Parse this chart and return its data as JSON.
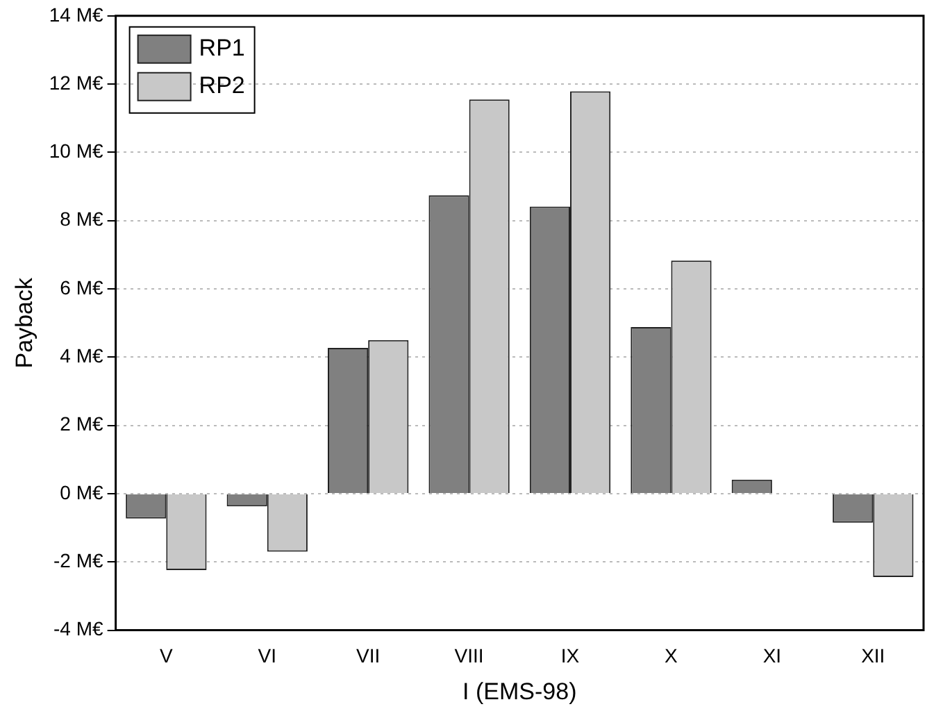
{
  "chart_data": {
    "type": "bar",
    "xlabel": "I (EMS-98)",
    "ylabel": "Payback",
    "categories": [
      "V",
      "VI",
      "VII",
      "VIII",
      "IX",
      "X",
      "XI",
      "XII"
    ],
    "series": [
      {
        "name": "RP1",
        "color": "#808080",
        "values": [
          -0.73,
          -0.37,
          4.27,
          8.74,
          8.41,
          4.88,
          0.41,
          -0.85
        ]
      },
      {
        "name": "RP2",
        "color": "#c8c8c8",
        "values": [
          -2.24,
          -1.7,
          4.5,
          11.55,
          11.79,
          6.83,
          0,
          -2.44
        ]
      }
    ],
    "ylim": [
      -4,
      14
    ],
    "yticks": [
      {
        "value": -4,
        "label": "-4 M€"
      },
      {
        "value": -2,
        "label": "-2 M€"
      },
      {
        "value": 0,
        "label": "0 M€"
      },
      {
        "value": 2,
        "label": "2 M€"
      },
      {
        "value": 4,
        "label": "4 M€"
      },
      {
        "value": 6,
        "label": "6 M€"
      },
      {
        "value": 8,
        "label": "8 M€"
      },
      {
        "value": 10,
        "label": "10 M€"
      },
      {
        "value": 12,
        "label": "12 M€"
      },
      {
        "value": 14,
        "label": "14 M€"
      }
    ],
    "grid": "y",
    "legend": "top left"
  }
}
